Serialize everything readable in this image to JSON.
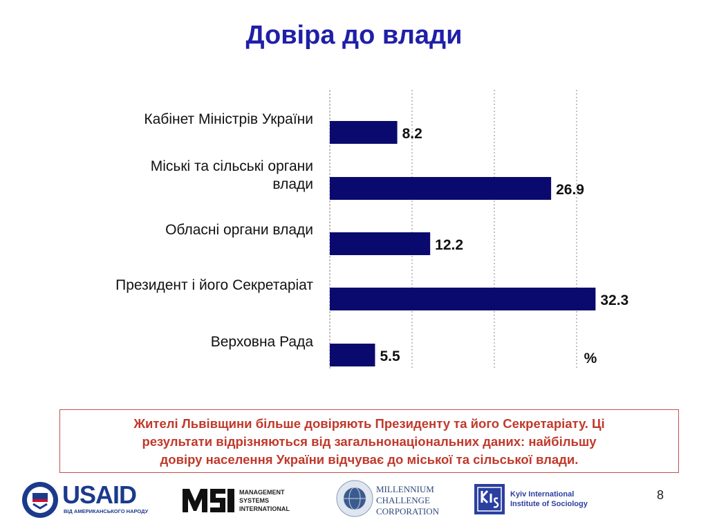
{
  "title": "Довіра до влади",
  "chart_data": {
    "type": "bar",
    "orientation": "horizontal",
    "categories": [
      [
        "Кабінет Міністрів України"
      ],
      [
        "Міські та сільські органи",
        "влади"
      ],
      [
        "Обласні органи влади"
      ],
      [
        "Президент і його Секретаріат"
      ],
      [
        "Верховна Рада"
      ]
    ],
    "values": [
      8.2,
      26.9,
      12.2,
      32.3,
      5.5
    ],
    "value_labels": [
      "8.2",
      "26.9",
      "12.2",
      "32.3",
      "5.5"
    ],
    "unit_label": "%",
    "xlim": [
      0,
      40
    ],
    "grid": "vertical dashed",
    "bar_color": "#0a0a6e"
  },
  "note": {
    "lines": [
      "Жителі Львівщини більше довіряють Президенту та його Секретаріату. Ці",
      "результати відрізняються від загальнонаціональних даних:  найбільшу",
      "довіру населення України відчуває до міської та сільської влади."
    ]
  },
  "logos": {
    "usaid": {
      "name": "USAID",
      "caption": "ВІД АМЕРИКАНСЬКОГО НАРОДУ"
    },
    "msi": {
      "caption": [
        "MANAGEMENT",
        "SYSTEMS",
        "INTERNATIONAL"
      ]
    },
    "mcc": {
      "caption": [
        "MILLENNIUM",
        "CHALLENGE",
        "CORPORATION"
      ]
    },
    "kiis": {
      "caption": [
        "Kyiv International",
        "Institute of Sociology"
      ]
    }
  },
  "page_number": "8"
}
